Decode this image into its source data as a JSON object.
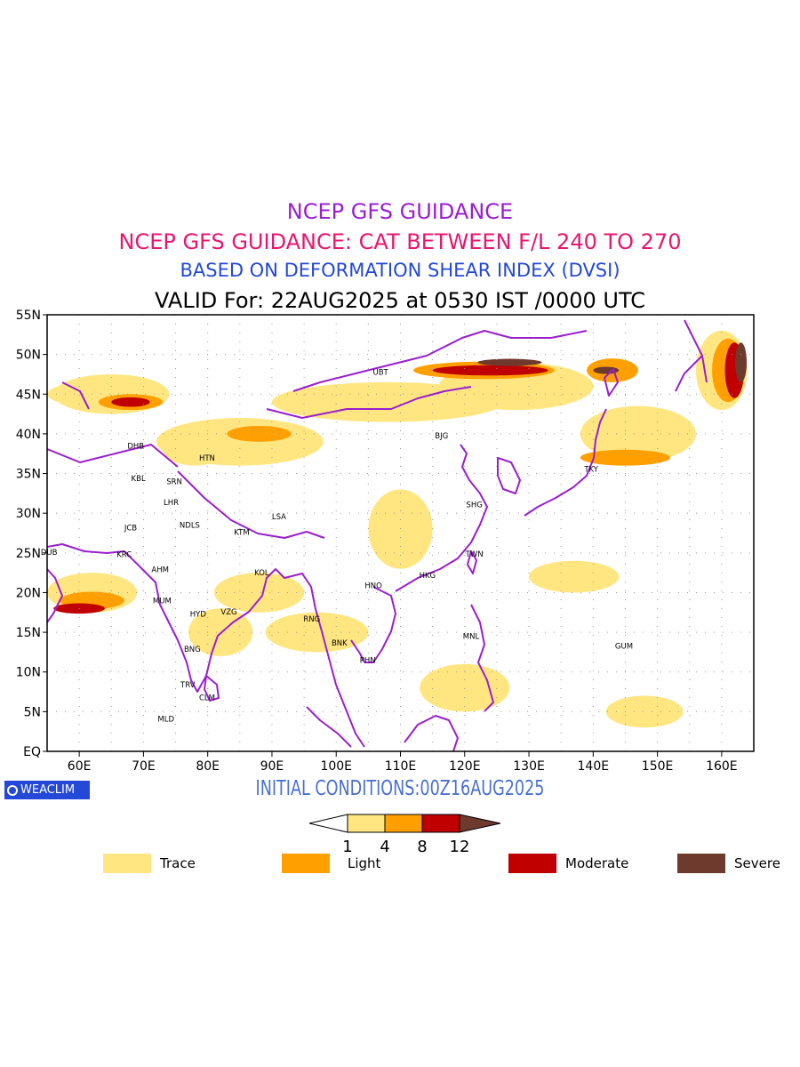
{
  "titles": {
    "line1": "NCEP GFS GUIDANCE",
    "line2": "NCEP GFS GUIDANCE: CAT BETWEEN F/L 240 TO 270",
    "line3": "BASED ON DEFORMATION SHEAR INDEX (DVSI)",
    "line4": "VALID For: 22AUG2025 at 0530 IST /0000 UTC"
  },
  "colors": {
    "title1": "#9a1fd0",
    "title2": "#e8166e",
    "title3": "#2448d8",
    "coast": "#9a1fd0",
    "trace": "#ffe680",
    "light": "#ffa000",
    "moderate": "#c00000",
    "severe": "#6e3a2e"
  },
  "map": {
    "lon_range": [
      55,
      165
    ],
    "lat_range": [
      0,
      55
    ],
    "lon_ticks": [
      "60E",
      "70E",
      "80E",
      "90E",
      "100E",
      "110E",
      "120E",
      "130E",
      "140E",
      "150E",
      "160E"
    ],
    "lat_ticks": [
      "EQ",
      "5N",
      "10N",
      "15N",
      "20N",
      "25N",
      "30N",
      "35N",
      "40N",
      "45N",
      "50N",
      "55N"
    ],
    "grid": true,
    "stations": [
      {
        "code": "UBT",
        "lon": 106.9,
        "lat": 47.9
      },
      {
        "code": "BJG",
        "lon": 116.4,
        "lat": 39.9
      },
      {
        "code": "TKY",
        "lon": 139.7,
        "lat": 35.7
      },
      {
        "code": "SHG",
        "lon": 121.5,
        "lat": 31.2
      },
      {
        "code": "TWN",
        "lon": 121.5,
        "lat": 25.0
      },
      {
        "code": "HKG",
        "lon": 114.2,
        "lat": 22.3
      },
      {
        "code": "HNO",
        "lon": 105.8,
        "lat": 21.0
      },
      {
        "code": "RNG",
        "lon": 96.2,
        "lat": 16.8
      },
      {
        "code": "BNK",
        "lon": 100.5,
        "lat": 13.8
      },
      {
        "code": "PHN",
        "lon": 104.9,
        "lat": 11.6
      },
      {
        "code": "MNL",
        "lon": 121.0,
        "lat": 14.6
      },
      {
        "code": "GUM",
        "lon": 144.8,
        "lat": 13.4
      },
      {
        "code": "LSA",
        "lon": 91.1,
        "lat": 29.7
      },
      {
        "code": "KTM",
        "lon": 85.3,
        "lat": 27.7
      },
      {
        "code": "KOL",
        "lon": 88.4,
        "lat": 22.6
      },
      {
        "code": "VZG",
        "lon": 83.3,
        "lat": 17.7
      },
      {
        "code": "HYD",
        "lon": 78.5,
        "lat": 17.4
      },
      {
        "code": "MUM",
        "lon": 72.9,
        "lat": 19.1
      },
      {
        "code": "BNG",
        "lon": 77.6,
        "lat": 13.0
      },
      {
        "code": "TRV",
        "lon": 76.9,
        "lat": 8.5
      },
      {
        "code": "CLM",
        "lon": 79.9,
        "lat": 6.9
      },
      {
        "code": "MLD",
        "lon": 73.5,
        "lat": 4.2
      },
      {
        "code": "AHM",
        "lon": 72.6,
        "lat": 23.0
      },
      {
        "code": "KRC",
        "lon": 67.0,
        "lat": 24.9
      },
      {
        "code": "DUB",
        "lon": 55.3,
        "lat": 25.2
      },
      {
        "code": "JCB",
        "lon": 68.0,
        "lat": 28.3
      },
      {
        "code": "NDLS",
        "lon": 77.2,
        "lat": 28.6
      },
      {
        "code": "LHR",
        "lon": 74.3,
        "lat": 31.5
      },
      {
        "code": "SRN",
        "lon": 74.8,
        "lat": 34.1
      },
      {
        "code": "KBL",
        "lon": 69.2,
        "lat": 34.5
      },
      {
        "code": "DHB",
        "lon": 68.8,
        "lat": 38.6
      },
      {
        "code": "HTN",
        "lon": 79.9,
        "lat": 37.1
      }
    ],
    "cat_areas": [
      {
        "level": "trace",
        "lon": 108,
        "lat": 44,
        "w": 36,
        "h": 5
      },
      {
        "level": "trace",
        "lon": 85,
        "lat": 39,
        "w": 26,
        "h": 6
      },
      {
        "level": "trace",
        "lon": 128,
        "lat": 46,
        "w": 24,
        "h": 6
      },
      {
        "level": "trace",
        "lon": 147,
        "lat": 40,
        "w": 18,
        "h": 7
      },
      {
        "level": "trace",
        "lon": 110,
        "lat": 28,
        "w": 10,
        "h": 10
      },
      {
        "level": "trace",
        "lon": 65,
        "lat": 45,
        "w": 18,
        "h": 5
      },
      {
        "level": "trace",
        "lon": 62,
        "lat": 20,
        "w": 14,
        "h": 5
      },
      {
        "level": "trace",
        "lon": 97,
        "lat": 15,
        "w": 16,
        "h": 5
      },
      {
        "level": "trace",
        "lon": 88,
        "lat": 20,
        "w": 14,
        "h": 5
      },
      {
        "level": "trace",
        "lon": 148,
        "lat": 5,
        "w": 12,
        "h": 4
      },
      {
        "level": "trace",
        "lon": 120,
        "lat": 8,
        "w": 14,
        "h": 6
      },
      {
        "level": "trace",
        "lon": 137,
        "lat": 22,
        "w": 14,
        "h": 4
      },
      {
        "level": "trace",
        "lon": 62,
        "lat": 45,
        "w": 14,
        "h": 3
      },
      {
        "level": "trace",
        "lon": 160,
        "lat": 48,
        "w": 8,
        "h": 10
      },
      {
        "level": "trace",
        "lon": 78,
        "lat": 38,
        "w": 10,
        "h": 4
      },
      {
        "level": "trace",
        "lon": 82,
        "lat": 15,
        "w": 10,
        "h": 6
      },
      {
        "level": "light",
        "lon": 123,
        "lat": 48,
        "w": 22,
        "h": 2.2
      },
      {
        "level": "light",
        "lon": 88,
        "lat": 40,
        "w": 10,
        "h": 2
      },
      {
        "level": "light",
        "lon": 68,
        "lat": 44,
        "w": 10,
        "h": 2
      },
      {
        "level": "light",
        "lon": 62,
        "lat": 19,
        "w": 10,
        "h": 2.2
      },
      {
        "level": "light",
        "lon": 143,
        "lat": 48,
        "w": 8,
        "h": 3
      },
      {
        "level": "light",
        "lon": 161,
        "lat": 48,
        "w": 5,
        "h": 8
      },
      {
        "level": "light",
        "lon": 145,
        "lat": 37,
        "w": 14,
        "h": 2
      },
      {
        "level": "moderate",
        "lon": 124,
        "lat": 48,
        "w": 18,
        "h": 1.3
      },
      {
        "level": "moderate",
        "lon": 60,
        "lat": 18,
        "w": 8,
        "h": 1.3
      },
      {
        "level": "moderate",
        "lon": 68,
        "lat": 44,
        "w": 6,
        "h": 1.2
      },
      {
        "level": "moderate",
        "lon": 162,
        "lat": 48,
        "w": 3,
        "h": 7
      },
      {
        "level": "severe",
        "lon": 127,
        "lat": 49,
        "w": 10,
        "h": 0.9
      },
      {
        "level": "severe",
        "lon": 163,
        "lat": 49,
        "w": 1.8,
        "h": 5
      },
      {
        "level": "severe",
        "lon": 142,
        "lat": 48,
        "w": 4,
        "h": 0.9
      }
    ]
  },
  "colorbar": {
    "labels": [
      "1",
      "4",
      "8",
      "12"
    ]
  },
  "legend": [
    {
      "label": "Trace",
      "color": "#ffe680"
    },
    {
      "label": "Light",
      "color": "#ffa000"
    },
    {
      "label": "Moderate",
      "color": "#c00000"
    },
    {
      "label": "Severe",
      "color": "#6e3a2e"
    }
  ],
  "initial_conditions": "INITIAL CONDITIONS:00Z16AUG2025",
  "logo_text": "WEACLIM"
}
